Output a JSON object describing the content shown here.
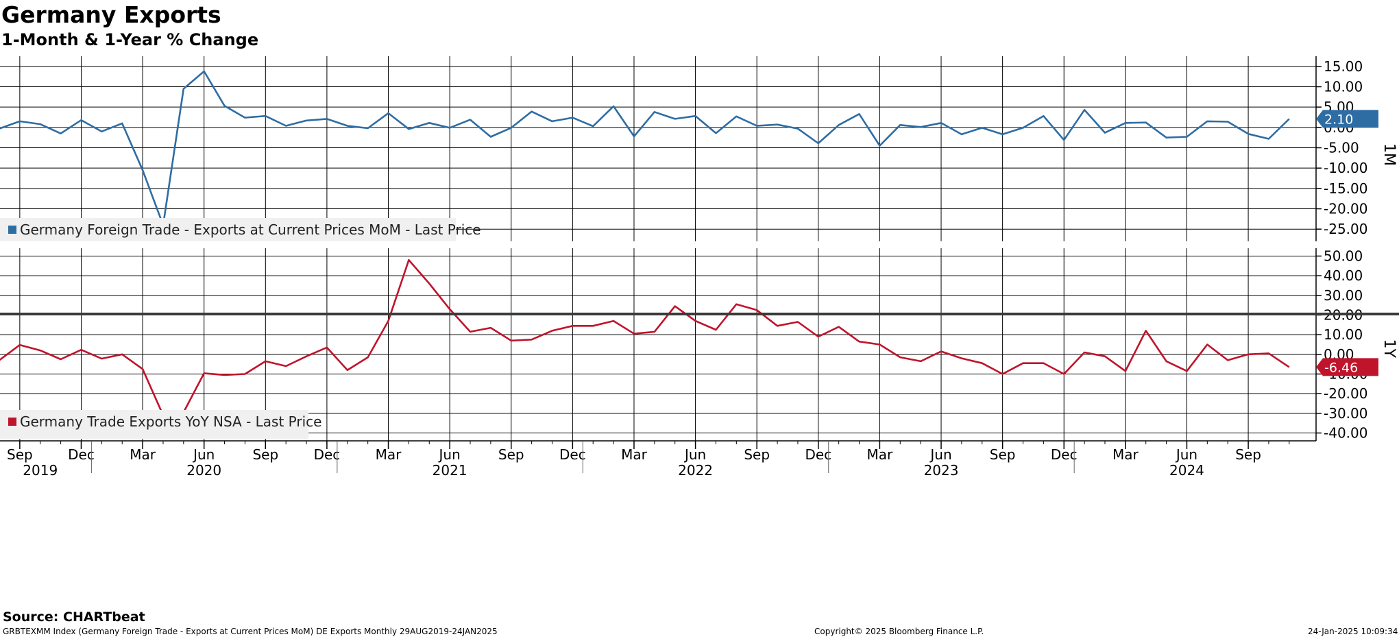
{
  "header": {
    "title": "Germany Exports",
    "subtitle": "1-Month & 1-Year % Change"
  },
  "footer": {
    "source": "Source: CHARTbeat",
    "ticker": "GRBTEXMM Index (Germany Foreign Trade - Exports at Current Prices MoM) DE Exports  Monthly 29AUG2019-24JAN2025",
    "copyright": "Copyright© 2025 Bloomberg Finance L.P.",
    "timestamp": "24-Jan-2025 10:09:34"
  },
  "colors": {
    "mom_line": "#2e6da4",
    "yoy_line": "#c0142c",
    "grid": "#000000",
    "separator": "#3a3a3a"
  },
  "chart_data": {
    "type": "line",
    "x_axis": {
      "months": [
        "Aug 2019",
        "Sep 2019",
        "Oct 2019",
        "Nov 2019",
        "Dec 2019",
        "Jan 2020",
        "Feb 2020",
        "Mar 2020",
        "Apr 2020",
        "May 2020",
        "Jun 2020",
        "Jul 2020",
        "Aug 2020",
        "Sep 2020",
        "Oct 2020",
        "Nov 2020",
        "Dec 2020",
        "Jan 2021",
        "Feb 2021",
        "Mar 2021",
        "Apr 2021",
        "May 2021",
        "Jun 2021",
        "Jul 2021",
        "Aug 2021",
        "Sep 2021",
        "Oct 2021",
        "Nov 2021",
        "Dec 2021",
        "Jan 2022",
        "Feb 2022",
        "Mar 2022",
        "Apr 2022",
        "May 2022",
        "Jun 2022",
        "Jul 2022",
        "Aug 2022",
        "Sep 2022",
        "Oct 2022",
        "Nov 2022",
        "Dec 2022",
        "Jan 2023",
        "Feb 2023",
        "Mar 2023",
        "Apr 2023",
        "May 2023",
        "Jun 2023",
        "Jul 2023",
        "Aug 2023",
        "Sep 2023",
        "Oct 2023",
        "Nov 2023",
        "Dec 2023",
        "Jan 2024",
        "Feb 2024",
        "Mar 2024",
        "Apr 2024",
        "May 2024",
        "Jun 2024",
        "Jul 2024",
        "Aug 2024",
        "Sep 2024",
        "Oct 2024",
        "Nov 2024"
      ],
      "month_ticks": [
        {
          "label": "Sep",
          "month": "Sep 2019"
        },
        {
          "label": "Dec",
          "month": "Dec 2019"
        },
        {
          "label": "Mar",
          "month": "Mar 2020"
        },
        {
          "label": "Jun",
          "month": "Jun 2020"
        },
        {
          "label": "Sep",
          "month": "Sep 2020"
        },
        {
          "label": "Dec",
          "month": "Dec 2020"
        },
        {
          "label": "Mar",
          "month": "Mar 2021"
        },
        {
          "label": "Jun",
          "month": "Jun 2021"
        },
        {
          "label": "Sep",
          "month": "Sep 2021"
        },
        {
          "label": "Dec",
          "month": "Dec 2021"
        },
        {
          "label": "Mar",
          "month": "Mar 2022"
        },
        {
          "label": "Jun",
          "month": "Jun 2022"
        },
        {
          "label": "Sep",
          "month": "Sep 2022"
        },
        {
          "label": "Dec",
          "month": "Dec 2022"
        },
        {
          "label": "Mar",
          "month": "Mar 2023"
        },
        {
          "label": "Jun",
          "month": "Jun 2023"
        },
        {
          "label": "Sep",
          "month": "Sep 2023"
        },
        {
          "label": "Dec",
          "month": "Dec 2023"
        },
        {
          "label": "Mar",
          "month": "Mar 2024"
        },
        {
          "label": "Jun",
          "month": "Jun 2024"
        },
        {
          "label": "Sep",
          "month": "Sep 2024"
        }
      ],
      "year_labels": [
        {
          "label": "2019",
          "month": "Oct 2019"
        },
        {
          "label": "2020",
          "month": "Jun 2020"
        },
        {
          "label": "2021",
          "month": "Jun 2021"
        },
        {
          "label": "2022",
          "month": "Jun 2022"
        },
        {
          "label": "2023",
          "month": "Jun 2023"
        },
        {
          "label": "2024",
          "month": "Jun 2024"
        }
      ],
      "year_boundaries": [
        "Jan 2020",
        "Jan 2021",
        "Jan 2022",
        "Jan 2023",
        "Jan 2024"
      ]
    },
    "panels": [
      {
        "id": "mom",
        "pane_label": "1M",
        "legend": "Germany Foreign Trade - Exports at Current Prices MoM - Last Price",
        "ylim": [
          -28,
          17.5
        ],
        "yticks": [
          "15.00",
          "10.00",
          "5.00",
          "0.00",
          "-5.00",
          "-10.00",
          "-15.00",
          "-20.00",
          "-25.00"
        ],
        "last_value": "2.10",
        "series": [
          {
            "values": [
              -0.3,
              1.5,
              0.8,
              -1.5,
              1.8,
              -1.0,
              1.0,
              -10.5,
              -24.0,
              9.5,
              13.8,
              5.3,
              2.4,
              2.8,
              0.4,
              1.7,
              2.1,
              0.4,
              -0.2,
              3.5,
              -0.4,
              1.1,
              -0.1,
              1.9,
              -2.3,
              -0.1,
              3.9,
              1.5,
              2.4,
              0.3,
              5.2,
              -2.2,
              3.8,
              2.1,
              2.8,
              -1.4,
              2.7,
              0.4,
              0.7,
              -0.3,
              -3.9,
              0.6,
              3.3,
              -4.5,
              0.6,
              0.1,
              1.1,
              -1.7,
              -0.1,
              -1.7,
              -0.1,
              2.8,
              -3.1,
              4.3,
              -1.3,
              1.1,
              1.2,
              -2.5,
              -2.3,
              1.5,
              1.4,
              -1.6,
              -2.8,
              2.1
            ]
          }
        ]
      },
      {
        "id": "yoy",
        "pane_label": "1Y",
        "legend": "Germany Trade Exports YoY NSA - Last Price",
        "ylim": [
          -44,
          54
        ],
        "yticks": [
          "50.00",
          "40.00",
          "30.00",
          "20.00",
          "10.00",
          "0.00",
          "-10.00",
          "-20.00",
          "-30.00",
          "-40.00"
        ],
        "last_value": "-6.46",
        "series": [
          {
            "values": [
              -3.0,
              4.8,
              2.0,
              -2.5,
              2.3,
              -2.2,
              0.0,
              -7.5,
              -31.0,
              -29.5,
              -9.6,
              -10.5,
              -10.0,
              -3.5,
              -6.0,
              -1.0,
              3.5,
              -8.0,
              -1.5,
              17.0,
              48.0,
              36.0,
              23.0,
              11.5,
              13.5,
              7.0,
              7.5,
              12.0,
              14.5,
              14.5,
              17.0,
              10.5,
              11.5,
              24.5,
              17.0,
              12.5,
              25.5,
              22.5,
              14.5,
              16.5,
              9.0,
              14.0,
              6.5,
              5.0,
              -1.5,
              -3.5,
              1.5,
              -2.0,
              -4.5,
              -10.0,
              -4.5,
              -4.5,
              -10.0,
              1.0,
              -1.0,
              -8.5,
              12.0,
              -3.5,
              -8.5,
              5.0,
              -3.0,
              0.0,
              0.5,
              -6.46
            ]
          }
        ]
      }
    ]
  }
}
